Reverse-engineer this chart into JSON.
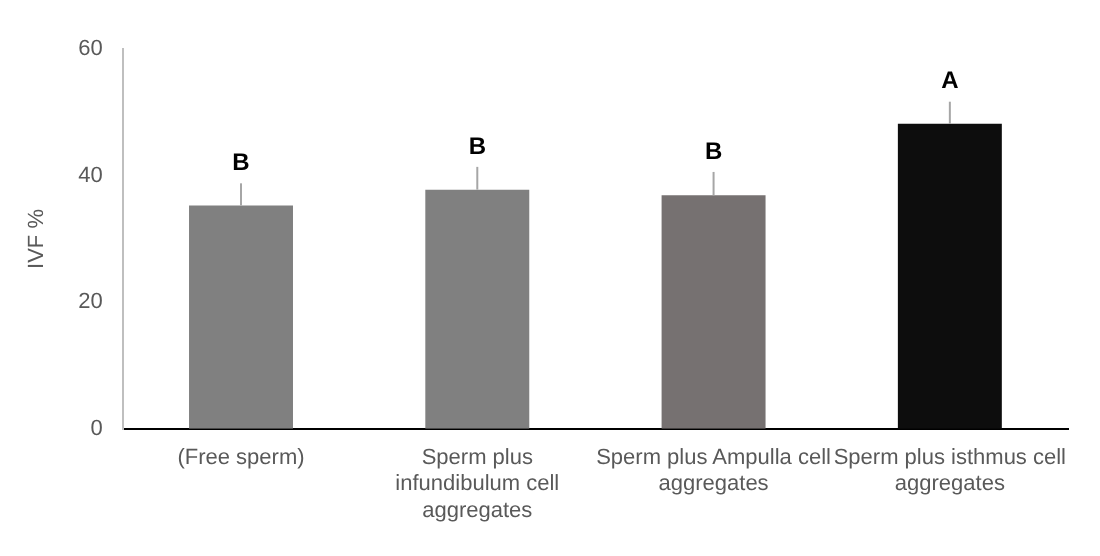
{
  "chart_data": {
    "type": "bar",
    "ylabel": "IVF %",
    "categories": [
      "(Free sperm)",
      "Sperm plus infundibulum cell aggregates",
      "Sperm plus Ampulla cell aggregates",
      "Sperm plus isthmus cell aggregates"
    ],
    "values": [
      35.3,
      37.8,
      36.9,
      48.2
    ],
    "colors": [
      "#808080",
      "#808080",
      "#767171",
      "#0d0d0d"
    ],
    "errors": [
      3.5,
      3.6,
      3.7,
      3.5
    ],
    "ylim": [
      0,
      60
    ],
    "yticks": [
      0,
      20,
      40,
      60
    ],
    "grid": false,
    "legend": false,
    "annotations": [
      {
        "text": "B",
        "x": "(Free sperm)",
        "y": 38.8
      },
      {
        "text": "B",
        "x": "Sperm plus infundibulum cell aggregates",
        "y": 41.4
      },
      {
        "text": "B",
        "x": "Sperm plus Ampulla cell aggregates",
        "y": 40.6
      },
      {
        "text": "A",
        "x": "Sperm plus isthmus cell aggregates",
        "y": 51.7
      }
    ]
  }
}
